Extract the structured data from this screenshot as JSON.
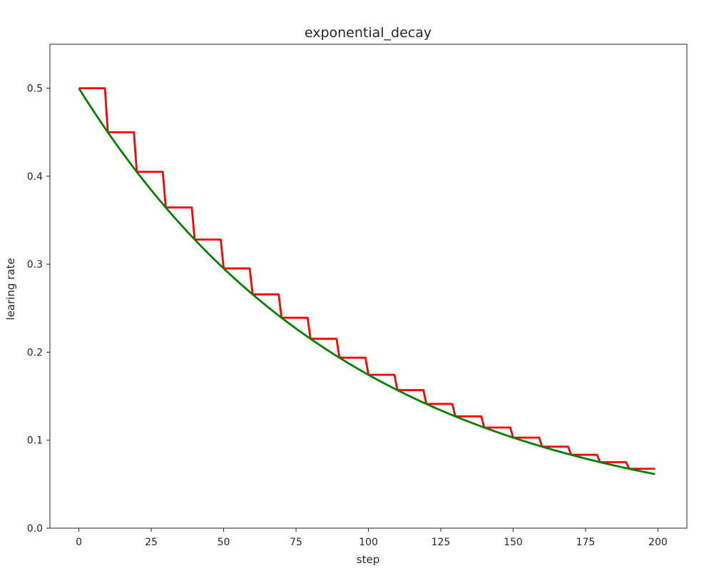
{
  "chart_data": {
    "type": "line",
    "title": "exponential_decay",
    "xlabel": "step",
    "ylabel": "learing rate",
    "xlim": [
      -10,
      210
    ],
    "ylim": [
      0.0,
      0.55
    ],
    "xticks": [
      0,
      25,
      50,
      75,
      100,
      125,
      150,
      175,
      200
    ],
    "xtick_labels": [
      "0",
      "25",
      "50",
      "75",
      "100",
      "125",
      "150",
      "175",
      "200"
    ],
    "yticks": [
      0.0,
      0.1,
      0.2,
      0.3,
      0.4,
      0.5
    ],
    "ytick_labels": [
      "0.0",
      "0.1",
      "0.2",
      "0.3",
      "0.4",
      "0.5"
    ],
    "grid": false,
    "legend": "none",
    "colors": {
      "staircase": "#ff0000",
      "continuous": "#008000",
      "axes": "#262626",
      "background": "#ffffff"
    },
    "series": [
      {
        "style": "staircase",
        "x_start": 0,
        "x_end": 199,
        "initial": 0.5,
        "decay_rate": 0.9,
        "decay_steps": 10
      },
      {
        "style": "continuous",
        "x_start": 0,
        "x_end": 199,
        "initial": 0.5,
        "decay_rate": 0.9,
        "decay_steps": 10
      }
    ]
  }
}
